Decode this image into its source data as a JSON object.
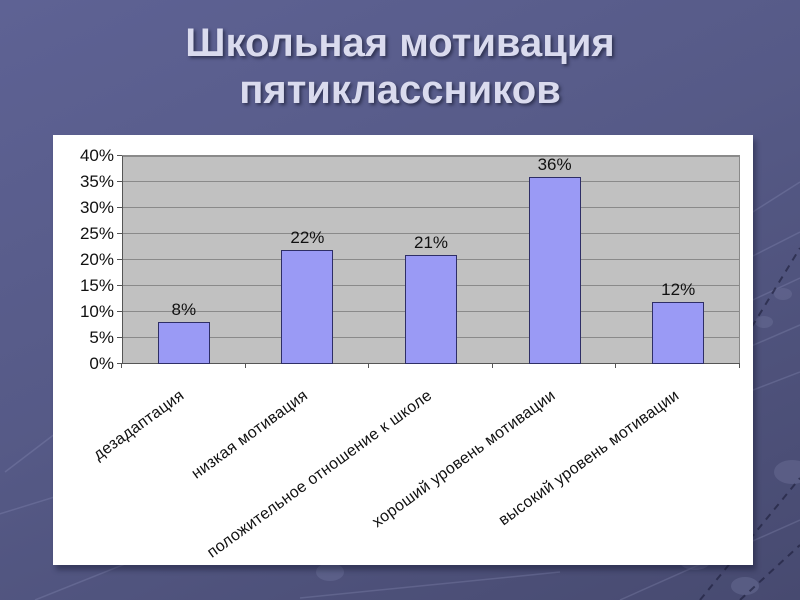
{
  "slide": {
    "title_line1": "Школьная мотивация",
    "title_line2": "пятиклассников"
  },
  "colors": {
    "background_top": "#5e6294",
    "background_bottom": "#474a70",
    "panel": "#ffffff",
    "plot_background": "#c1c1c1",
    "gridline": "#8a8a8a",
    "bar_fill": "#9a9af5",
    "bar_border": "#2e2e66",
    "title_text": "#dadbee",
    "chart_text": "#111111"
  },
  "chart_data": {
    "type": "bar",
    "title": "",
    "categories": [
      "дезадаптация",
      "низкая мотивация",
      "положительное отношение к школе",
      "хороший уровень мотивации",
      "высокий уровень мотивации"
    ],
    "values": [
      8,
      22,
      21,
      36,
      12
    ],
    "value_labels": [
      "8%",
      "22%",
      "21%",
      "36%",
      "12%"
    ],
    "y_ticks": [
      "0%",
      "5%",
      "10%",
      "15%",
      "20%",
      "25%",
      "30%",
      "35%",
      "40%"
    ],
    "y_step": 5,
    "ylim": [
      0,
      40
    ],
    "xlabel": "",
    "ylabel": "",
    "grid": true,
    "legend": "none"
  }
}
